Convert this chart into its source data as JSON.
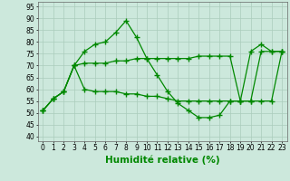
{
  "x": [
    0,
    1,
    2,
    3,
    4,
    5,
    6,
    7,
    8,
    9,
    10,
    11,
    12,
    13,
    14,
    15,
    16,
    17,
    18,
    19,
    20,
    21,
    22,
    23
  ],
  "line1": [
    51,
    56,
    59,
    70,
    76,
    79,
    80,
    84,
    89,
    82,
    73,
    66,
    59,
    54,
    51,
    48,
    48,
    49,
    55,
    55,
    76,
    79,
    76,
    76
  ],
  "line2": [
    51,
    56,
    59,
    70,
    71,
    71,
    71,
    72,
    72,
    73,
    73,
    73,
    73,
    73,
    73,
    74,
    74,
    74,
    74,
    55,
    55,
    76,
    76,
    76
  ],
  "line3": [
    51,
    56,
    59,
    70,
    60,
    59,
    59,
    59,
    58,
    58,
    57,
    57,
    56,
    55,
    55,
    55,
    55,
    55,
    55,
    55,
    55,
    55,
    55,
    76
  ],
  "bg_color": "#cce8dc",
  "grid_color": "#aaccbb",
  "line_color": "#008800",
  "xlabel": "Humidité relative (%)",
  "xlabel_color": "#008800",
  "xlabel_fontsize": 7.5,
  "ytick_labels": [
    "40",
    "45",
    "50",
    "55",
    "60",
    "65",
    "70",
    "75",
    "80",
    "85",
    "90",
    "95"
  ],
  "ytick_vals": [
    40,
    45,
    50,
    55,
    60,
    65,
    70,
    75,
    80,
    85,
    90,
    95
  ],
  "xtick_vals": [
    0,
    1,
    2,
    3,
    4,
    5,
    6,
    7,
    8,
    9,
    10,
    11,
    12,
    13,
    14,
    15,
    16,
    17,
    18,
    19,
    20,
    21,
    22,
    23
  ],
  "ylim": [
    38,
    97
  ],
  "xlim": [
    -0.5,
    23.5
  ],
  "tick_fontsize": 5.5,
  "marker": "+",
  "markersize": 4,
  "markeredgewidth": 1.0,
  "linewidth": 0.9
}
